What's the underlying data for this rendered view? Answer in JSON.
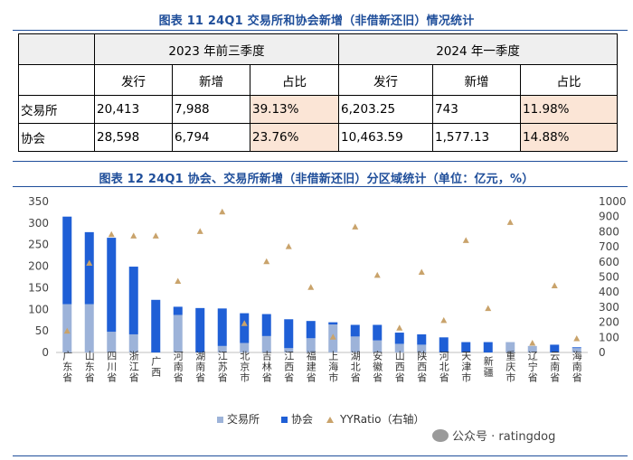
{
  "table11": {
    "title": "图表 11 24Q1 交易所和协会新增（非借新还旧）情况统计",
    "period1": "2023 年前三季度",
    "period2": "2024 年一季度",
    "col_headers": [
      "发行",
      "新增",
      "占比",
      "发行",
      "新增",
      "占比"
    ],
    "rows": [
      {
        "label": "交易所",
        "cells": [
          "20,413",
          "7,988",
          "39.13%",
          "6,203.25",
          "743",
          "11.98%"
        ]
      },
      {
        "label": "协会",
        "cells": [
          "28,598",
          "6,794",
          "23.76%",
          "10,463.59",
          "1,577.13",
          "14.88%"
        ]
      }
    ]
  },
  "chart12_title": "图表 12 24Q1 协会、交易所新增（非借新还旧）分区域统计（单位：亿元，%）",
  "watermark": "公众号 · ratingdog",
  "colors": {
    "exchange": "#9db3d9",
    "association": "#1f5fd6",
    "ratio": "#c9a36b",
    "title": "#1f4e9a",
    "pct_bg": "#fbe5d6"
  },
  "chart_data": {
    "type": "bar",
    "stacked": true,
    "categories": [
      "广东省",
      "山东省",
      "四川省",
      "浙江省",
      "广西",
      "河南省",
      "湖南省",
      "江苏省",
      "北京市",
      "吉林省",
      "江西省",
      "福建省",
      "上海市",
      "湖北省",
      "安徽省",
      "山西省",
      "陕西省",
      "河北省",
      "天津市",
      "新疆",
      "重庆市",
      "辽宁省",
      "云南省",
      "海南省"
    ],
    "series": [
      {
        "name": "交易所",
        "values": [
          112,
          112,
          48,
          42,
          0,
          87,
          0,
          15,
          22,
          38,
          10,
          33,
          65,
          37,
          28,
          20,
          18,
          0,
          0,
          0,
          24,
          15,
          0,
          10
        ]
      },
      {
        "name": "协会",
        "values": [
          203,
          167,
          218,
          157,
          122,
          19,
          103,
          87,
          69,
          51,
          67,
          40,
          5,
          27,
          36,
          26,
          24,
          35,
          24,
          24,
          0,
          0,
          18,
          2
        ]
      },
      {
        "name": "YYRatio（右轴）",
        "axis": "right",
        "values": [
          140,
          590,
          780,
          770,
          770,
          470,
          800,
          930,
          190,
          600,
          700,
          430,
          100,
          830,
          510,
          160,
          530,
          210,
          740,
          290,
          860,
          60,
          440,
          90
        ]
      }
    ],
    "ylim": [
      0,
      350
    ],
    "yticks": [
      0,
      50,
      100,
      150,
      200,
      250,
      300,
      350
    ],
    "y2lim": [
      0,
      1000
    ],
    "y2ticks": [
      0,
      100,
      200,
      300,
      400,
      500,
      600,
      700,
      800,
      900,
      1000
    ],
    "legend": [
      "交易所",
      "协会",
      "YYRatio（右轴）"
    ],
    "legend_position": "bottom"
  }
}
